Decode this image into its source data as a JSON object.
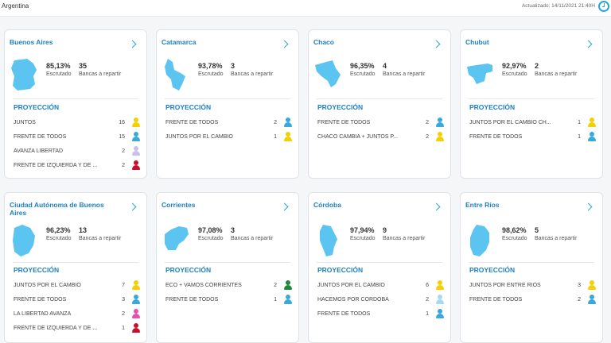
{
  "header": {
    "title": "Argentina",
    "updated": "Actualizado: 14/11/2021 21:40H"
  },
  "labels": {
    "escrutado": "Escrutado",
    "bancas": "Bancas a repartir",
    "proyeccion": "PROYECCIÓN"
  },
  "colors": {
    "accent": "#1d7fc1",
    "map": "#5bc4f1",
    "yellow": "#f5d000",
    "blue": "#39a9dc",
    "lavender": "#c9c0f0",
    "red": "#c8102e",
    "lightblue": "#a9d8f2",
    "pink": "#e64fb1",
    "green": "#1b8a3a"
  },
  "cards": [
    {
      "name": "Buenos Aires",
      "escrutado": "85,13%",
      "bancas": "35",
      "rows": [
        {
          "party": "JUNTOS",
          "seats": "16",
          "color": "yellow"
        },
        {
          "party": "FRENTE DE TODOS",
          "seats": "15",
          "color": "blue"
        },
        {
          "party": "AVANZA LIBERTAD",
          "seats": "2",
          "color": "lavender"
        },
        {
          "party": "FRENTE DE IZQUIERDA Y DE ...",
          "seats": "2",
          "color": "red"
        }
      ]
    },
    {
      "name": "Catamarca",
      "escrutado": "93,78%",
      "bancas": "3",
      "rows": [
        {
          "party": "FRENTE DE TODOS",
          "seats": "2",
          "color": "blue"
        },
        {
          "party": "JUNTOS POR EL CAMBIO",
          "seats": "1",
          "color": "yellow"
        }
      ]
    },
    {
      "name": "Chaco",
      "escrutado": "96,35%",
      "bancas": "4",
      "rows": [
        {
          "party": "FRENTE DE TODOS",
          "seats": "2",
          "color": "blue"
        },
        {
          "party": "CHACO CAMBIA + JUNTOS P...",
          "seats": "2",
          "color": "yellow"
        }
      ]
    },
    {
      "name": "Chubut",
      "escrutado": "92,97%",
      "bancas": "2",
      "rows": [
        {
          "party": "JUNTOS POR EL CAMBIO CH...",
          "seats": "1",
          "color": "yellow"
        },
        {
          "party": "FRENTE DE TODOS",
          "seats": "1",
          "color": "blue"
        }
      ]
    },
    {
      "name": "Ciudad Autónoma de Buenos Aires",
      "escrutado": "96,23%",
      "bancas": "13",
      "rows": [
        {
          "party": "JUNTOS POR EL CAMBIO",
          "seats": "7",
          "color": "yellow"
        },
        {
          "party": "FRENTE DE TODOS",
          "seats": "3",
          "color": "blue"
        },
        {
          "party": "LA LIBERTAD AVANZA",
          "seats": "2",
          "color": "pink"
        },
        {
          "party": "FRENTE DE IZQUIERDA Y DE ...",
          "seats": "1",
          "color": "red"
        }
      ]
    },
    {
      "name": "Corrientes",
      "escrutado": "97,08%",
      "bancas": "3",
      "rows": [
        {
          "party": "ECO + VAMOS CORRIENTES",
          "seats": "2",
          "color": "green"
        },
        {
          "party": "FRENTE DE TODOS",
          "seats": "1",
          "color": "blue"
        }
      ]
    },
    {
      "name": "Córdoba",
      "escrutado": "97,94%",
      "bancas": "9",
      "rows": [
        {
          "party": "JUNTOS POR EL CAMBIO",
          "seats": "6",
          "color": "yellow"
        },
        {
          "party": "HACEMOS POR CÓRDOBA",
          "seats": "2",
          "color": "lightblue"
        },
        {
          "party": "FRENTE DE TODOS",
          "seats": "1",
          "color": "blue"
        }
      ]
    },
    {
      "name": "Entre Ríos",
      "escrutado": "98,62%",
      "bancas": "5",
      "rows": [
        {
          "party": "JUNTOS POR ENTRE RÍOS",
          "seats": "3",
          "color": "yellow"
        },
        {
          "party": "FRENTE DE TODOS",
          "seats": "2",
          "color": "blue"
        }
      ]
    }
  ]
}
